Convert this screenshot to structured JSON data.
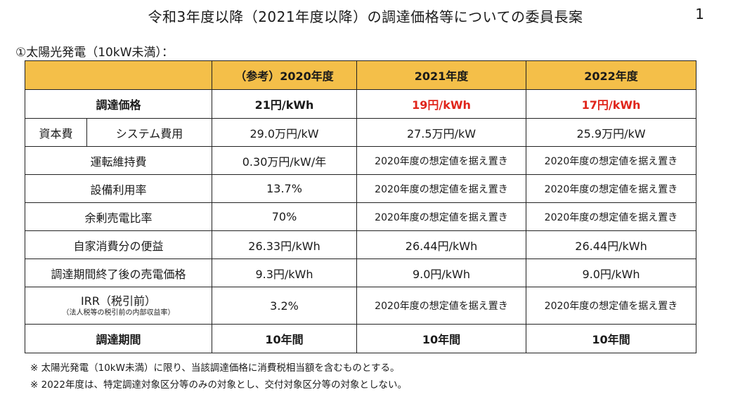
{
  "title": "令和3年度以降（2021年度以降）の調達価格等についての委員長案",
  "page_number": "1",
  "section_title": "①太陽光発電（10kW未満）：",
  "table": {
    "headers": [
      "",
      "（参考）2020年度",
      "2021年度",
      "2022年度"
    ],
    "price": {
      "label": "調達価格",
      "values": [
        "21円/kWh",
        "19円/kWh",
        "17円/kWh"
      ]
    },
    "capital": {
      "group": "資本費",
      "label": "システム費用",
      "values": [
        "29.0万円/kW",
        "27.5万円/kW",
        "25.9万円/kW"
      ]
    },
    "om": {
      "label": "運転維持費",
      "values": [
        "0.30万円/kW/年",
        "2020年度の想定値を据え置き",
        "2020年度の想定値を据え置き"
      ]
    },
    "capacity": {
      "label": "設備利用率",
      "values": [
        "13.7%",
        "2020年度の想定値を据え置き",
        "2020年度の想定値を据え置き"
      ]
    },
    "surplus": {
      "label": "余剰売電比率",
      "values": [
        "70%",
        "2020年度の想定値を据え置き",
        "2020年度の想定値を据え置き"
      ]
    },
    "self": {
      "label": "自家消費分の便益",
      "values": [
        "26.33円/kWh",
        "26.44円/kWh",
        "26.44円/kWh"
      ]
    },
    "after": {
      "label": "調達期間終了後の売電価格",
      "values": [
        "9.3円/kWh",
        "9.0円/kWh",
        "9.0円/kWh"
      ]
    },
    "irr": {
      "label": "IRR（税引前）",
      "sublabel": "（法人税等の税引前の内部収益率）",
      "values": [
        "3.2%",
        "2020年度の想定値を据え置き",
        "2020年度の想定値を据え置き"
      ]
    },
    "period": {
      "label": "調達期間",
      "values": [
        "10年間",
        "10年間",
        "10年間"
      ]
    }
  },
  "notes": [
    "※ 太陽光発電（10kW未満）に限り、当該調達価格に消費税相当額を含むものとする。",
    "※ 2022年度は、特定調達対象区分等のみの対象とし、交付対象区分等の対象としない。"
  ],
  "colors": {
    "header_bg": "#f4bf49",
    "highlight_red": "#e0251b"
  }
}
